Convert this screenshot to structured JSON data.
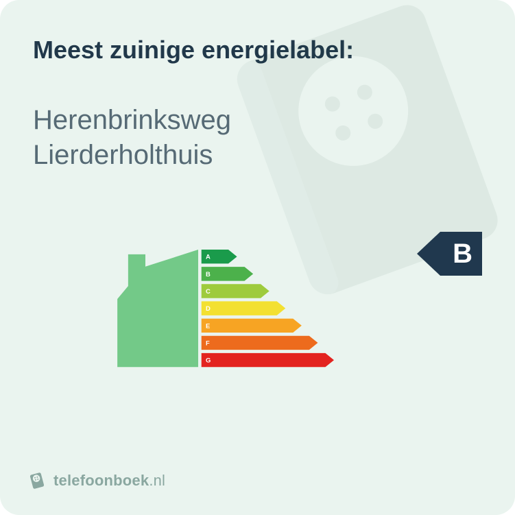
{
  "title": "Meest zuinige energielabel:",
  "address_line1": "Herenbrinksweg",
  "address_line2": "Lierderholthuis",
  "badge_letter": "B",
  "badge_color": "#20384e",
  "badge_text_color": "#ffffff",
  "badge_fontsize": 40,
  "background_color": "#eaf4ef",
  "title_color": "#21384a",
  "title_fontsize": 36,
  "subtitle_color": "#566a75",
  "subtitle_fontsize": 40,
  "house_color": "#73c988",
  "energy_bars": {
    "labels": [
      "A",
      "B",
      "C",
      "D",
      "E",
      "F",
      "G"
    ],
    "colors": [
      "#1a9b4b",
      "#4cb14b",
      "#9ecb3c",
      "#f3e031",
      "#f7a423",
      "#ed6b1d",
      "#e3231f"
    ],
    "bar_heights": 26,
    "bar_gap": 6,
    "base_width": 50,
    "width_step": 30,
    "arrow_tip": 16,
    "label_color": "#ffffff",
    "label_fontsize": 12
  },
  "footer": {
    "brand": "telefoonboek",
    "tld": ".nl",
    "icon_bg": "#8aa7a0",
    "text_color": "#8aa7a0"
  }
}
